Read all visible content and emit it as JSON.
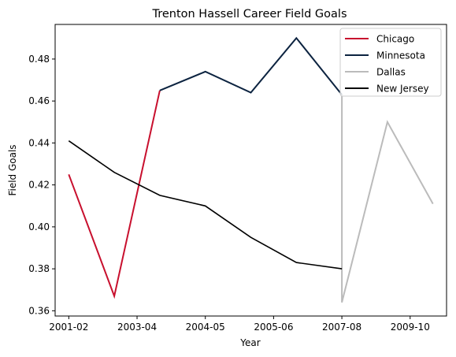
{
  "chart_data": {
    "type": "line",
    "title": "Trenton Hassell Career Field Goals",
    "xlabel": "Year",
    "ylabel": "Field Goals",
    "x_ticks": [
      "2001-02",
      "2003-04",
      "2004-05",
      "2005-06",
      "2007-08",
      "2009-10"
    ],
    "xlim": [
      -0.3,
      8.3
    ],
    "ylim": [
      0.3575,
      0.4965
    ],
    "y_ticks": [
      0.36,
      0.38,
      0.4,
      0.42,
      0.44,
      0.46,
      0.48
    ],
    "y_tick_labels": [
      "0.36",
      "0.38",
      "0.40",
      "0.42",
      "0.44",
      "0.46",
      "0.48"
    ],
    "grid": false,
    "legend_position": "top-right",
    "series": [
      {
        "name": "Chicago",
        "color": "#C8102E",
        "points": [
          {
            "x": 0,
            "y": 0.425
          },
          {
            "x": 1,
            "y": 0.367
          },
          {
            "x": 2,
            "y": 0.465
          }
        ]
      },
      {
        "name": "Minnesota",
        "color": "#0C2340",
        "points": [
          {
            "x": 2,
            "y": 0.465
          },
          {
            "x": 3,
            "y": 0.474
          },
          {
            "x": 4,
            "y": 0.464
          },
          {
            "x": 5,
            "y": 0.49
          },
          {
            "x": 6,
            "y": 0.463
          }
        ]
      },
      {
        "name": "Dallas",
        "color": "#BBBBBB",
        "points": [
          {
            "x": 6,
            "y": 0.463
          },
          {
            "x": 6,
            "y": 0.364
          },
          {
            "x": 7,
            "y": 0.45
          },
          {
            "x": 8,
            "y": 0.411
          }
        ]
      },
      {
        "name": "New Jersey",
        "color": "#000000",
        "points": [
          {
            "x": 0,
            "y": 0.441
          },
          {
            "x": 1,
            "y": 0.426
          },
          {
            "x": 2,
            "y": 0.415
          },
          {
            "x": 3,
            "y": 0.41
          },
          {
            "x": 4,
            "y": 0.395
          },
          {
            "x": 5,
            "y": 0.383
          },
          {
            "x": 6,
            "y": 0.38
          }
        ]
      }
    ]
  }
}
